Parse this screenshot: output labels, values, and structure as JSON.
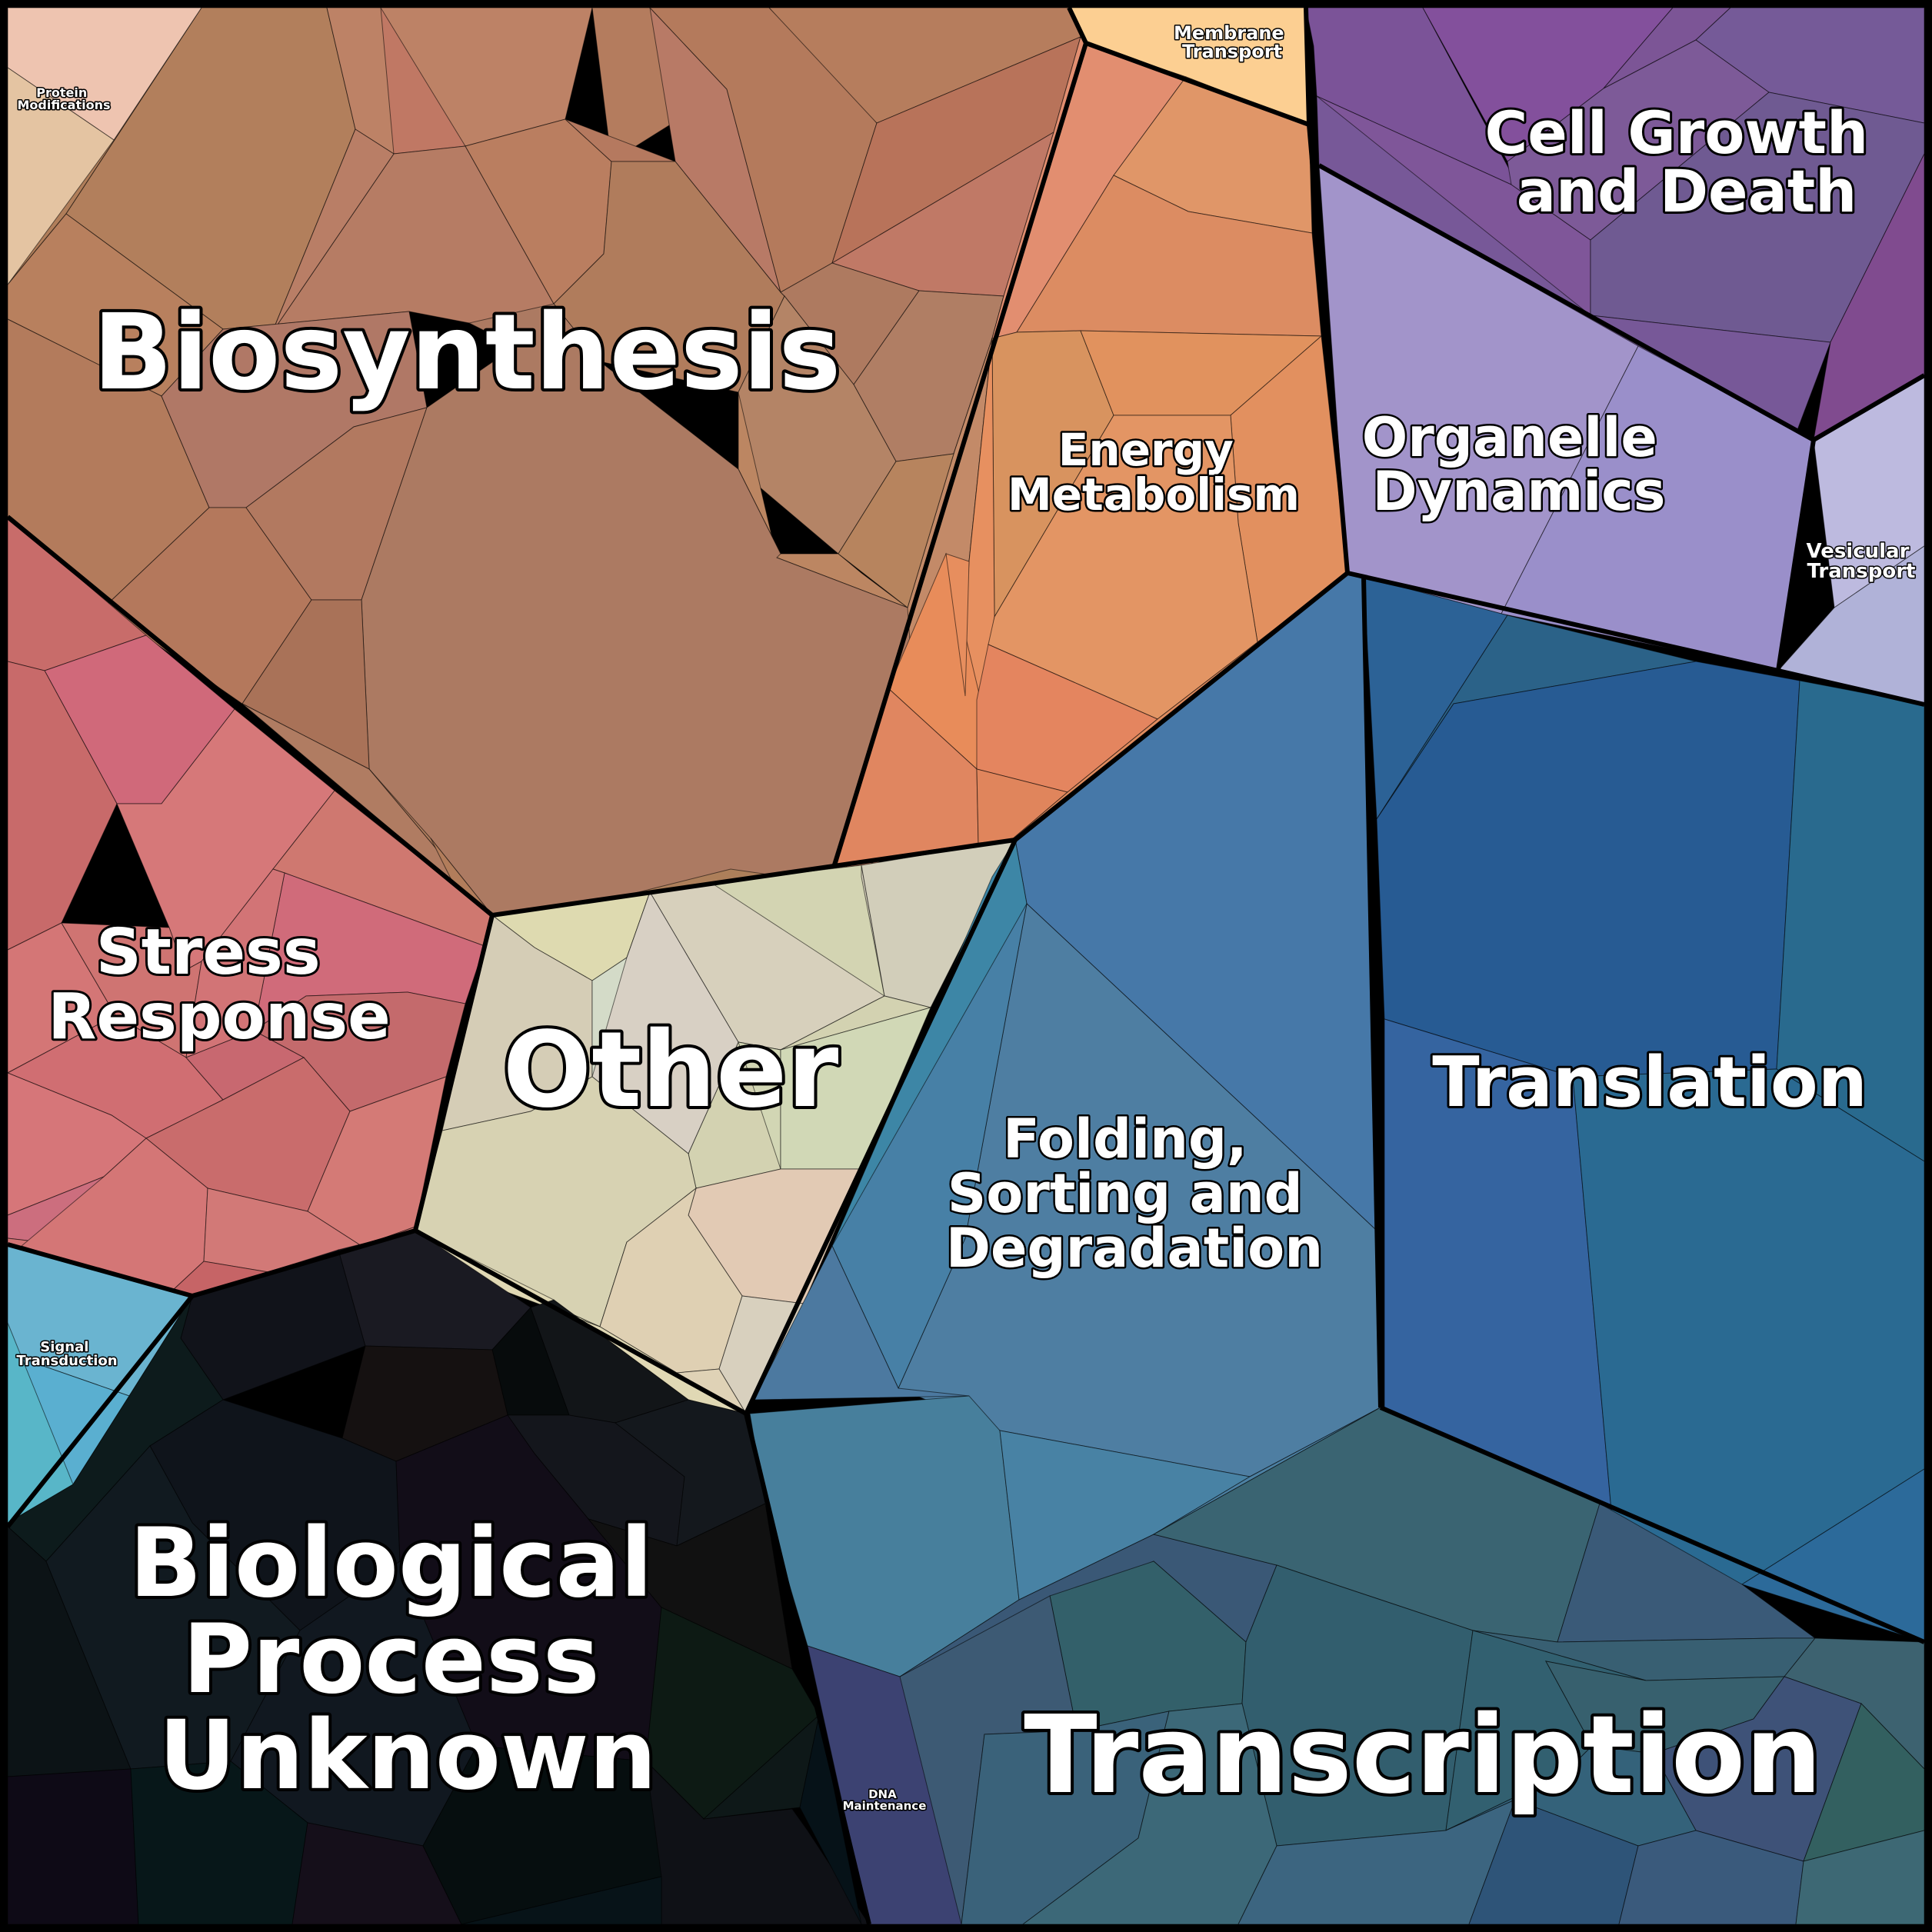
{
  "regions": [
    {
      "id": "biosynthesis",
      "name": "Biosynthesis",
      "color": "#b07c5c"
    },
    {
      "id": "protein-modifications",
      "name": "Protein Modifications",
      "color": "#e6c4a8"
    },
    {
      "id": "membrane-transport",
      "name": "Membrane Transport",
      "color": "#fccf92"
    },
    {
      "id": "cell-growth-and-death",
      "name": "Cell Growth and Death",
      "color": "#7b5596"
    },
    {
      "id": "energy-metabolism",
      "name": "Energy Metabolism",
      "color": "#e39363"
    },
    {
      "id": "organelle-dynamics",
      "name": "Organelle Dynamics",
      "color": "#9d91c9"
    },
    {
      "id": "vesicular-transport",
      "name": "Vesicular Transport",
      "color": "#b4b6da"
    },
    {
      "id": "stress-response",
      "name": "Stress Response",
      "color": "#d17275"
    },
    {
      "id": "other",
      "name": "Other",
      "color": "#d8d4b8"
    },
    {
      "id": "signal-transduction",
      "name": "Signal Transduction",
      "color": "#62b5cf"
    },
    {
      "id": "biological-process-unknown",
      "name": "Biological Process Unknown",
      "color": "#0f1419"
    },
    {
      "id": "folding-sorting-degradation",
      "name": "Folding, Sorting and Degradation",
      "color": "#4a7ea2"
    },
    {
      "id": "translation",
      "name": "Translation",
      "color": "#2c6595"
    },
    {
      "id": "transcription",
      "name": "Transcription",
      "color": "#3a6278"
    },
    {
      "id": "dna-maintenance",
      "name": "DNA Maintenance",
      "color": "#3c4272"
    }
  ],
  "labels": {
    "biosynthesis": [
      "Biosynthesis"
    ],
    "protein_modifications": [
      "Protein",
      "Modifications"
    ],
    "membrane_transport": [
      "Membrane",
      "Transport"
    ],
    "cell_growth": [
      "Cell Growth",
      "and Death"
    ],
    "energy_metabolism": [
      "Energy",
      "Metabolism"
    ],
    "organelle_dynamics": [
      "Organelle",
      "Dynamics"
    ],
    "vesicular_transport": [
      "Vesicular",
      "Transport"
    ],
    "stress_response": [
      "Stress",
      "Response"
    ],
    "other": [
      "Other"
    ],
    "signal_transduction": [
      "Signal",
      "Transduction"
    ],
    "bio_unknown": [
      "Biological",
      "Process",
      "Unknown"
    ],
    "folding": [
      "Folding,",
      "Sorting and",
      "Degradation"
    ],
    "translation": [
      "Translation"
    ],
    "transcription": [
      "Transcription"
    ],
    "dna_maintenance": [
      "DNA",
      "Maintenance"
    ]
  }
}
